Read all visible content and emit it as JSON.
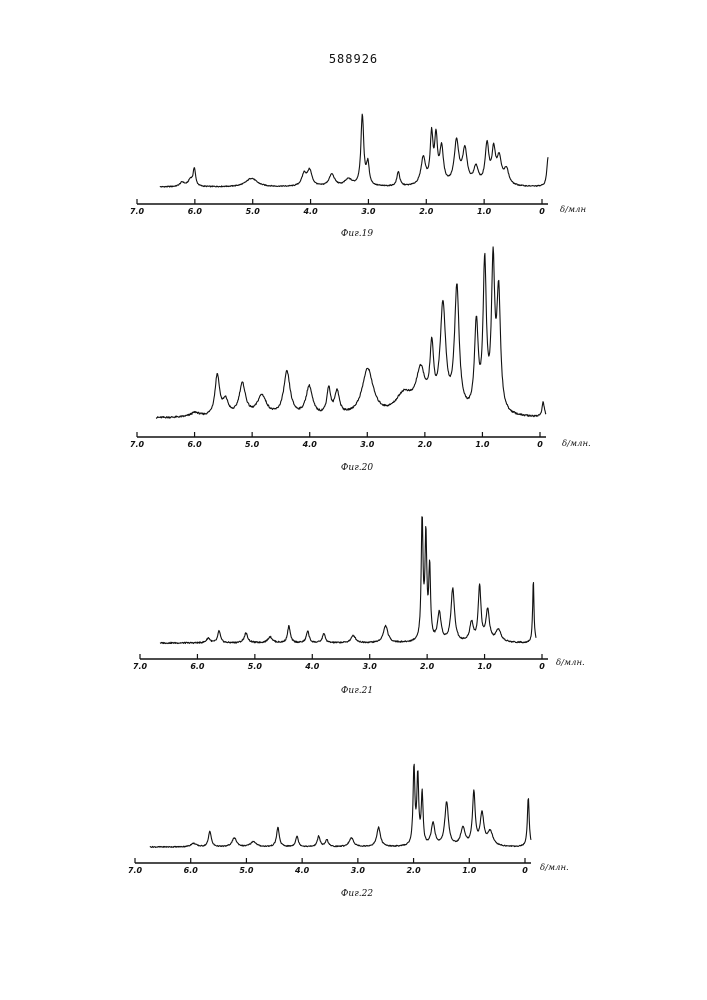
{
  "page": {
    "number": "588926"
  },
  "chart_data": [
    {
      "type": "line",
      "caption": "Фиг.19",
      "xlabel": "δ/млн",
      "xlim": [
        7.0,
        0
      ],
      "ticks": [
        7.0,
        6.0,
        5.0,
        4.0,
        3.0,
        2.0,
        1.0,
        0
      ],
      "tick_labels": [
        "7.0",
        "6.0",
        "5.0",
        "4.0",
        "3.0",
        "2.0",
        "1.0",
        "0"
      ],
      "peaks": [
        {
          "x": 6.6,
          "h": 0.05,
          "w": 0.05
        },
        {
          "x": 6.45,
          "h": 0.08,
          "w": 0.05
        },
        {
          "x": 6.38,
          "h": 0.2,
          "w": 0.025
        },
        {
          "x": 5.35,
          "h": 0.1,
          "w": 0.12
        },
        {
          "x": 4.4,
          "h": 0.14,
          "w": 0.05
        },
        {
          "x": 4.3,
          "h": 0.18,
          "w": 0.05
        },
        {
          "x": 3.9,
          "h": 0.14,
          "w": 0.06
        },
        {
          "x": 3.6,
          "h": 0.08,
          "w": 0.08
        },
        {
          "x": 3.35,
          "h": 0.82,
          "w": 0.03
        },
        {
          "x": 3.25,
          "h": 0.25,
          "w": 0.03
        },
        {
          "x": 2.7,
          "h": 0.17,
          "w": 0.03
        },
        {
          "x": 2.25,
          "h": 0.32,
          "w": 0.05
        },
        {
          "x": 2.1,
          "h": 0.56,
          "w": 0.03
        },
        {
          "x": 2.02,
          "h": 0.52,
          "w": 0.03
        },
        {
          "x": 1.92,
          "h": 0.42,
          "w": 0.04
        },
        {
          "x": 1.65,
          "h": 0.5,
          "w": 0.05
        },
        {
          "x": 1.5,
          "h": 0.4,
          "w": 0.05
        },
        {
          "x": 1.3,
          "h": 0.2,
          "w": 0.05
        },
        {
          "x": 1.1,
          "h": 0.46,
          "w": 0.04
        },
        {
          "x": 0.98,
          "h": 0.38,
          "w": 0.04
        },
        {
          "x": 0.88,
          "h": 0.3,
          "w": 0.05
        },
        {
          "x": 0.75,
          "h": 0.18,
          "w": 0.05
        },
        {
          "x": 0.0,
          "h": 0.34,
          "w": 0.025
        }
      ]
    },
    {
      "type": "line",
      "caption": "Фиг.20",
      "xlabel": "δ/млн.",
      "xlim": [
        7.0,
        0
      ],
      "ticks": [
        7.0,
        6.0,
        5.0,
        4.0,
        3.0,
        2.0,
        1.0,
        0
      ],
      "tick_labels": [
        "7.0",
        "6.0",
        "5.0",
        "4.0",
        "3.0",
        "2.0",
        "1.0",
        "0"
      ],
      "peaks": [
        {
          "x": 6.3,
          "h": 0.03,
          "w": 0.1
        },
        {
          "x": 5.9,
          "h": 0.28,
          "w": 0.05
        },
        {
          "x": 5.75,
          "h": 0.1,
          "w": 0.06
        },
        {
          "x": 5.45,
          "h": 0.22,
          "w": 0.07
        },
        {
          "x": 5.1,
          "h": 0.14,
          "w": 0.1
        },
        {
          "x": 4.65,
          "h": 0.3,
          "w": 0.07
        },
        {
          "x": 4.25,
          "h": 0.2,
          "w": 0.07
        },
        {
          "x": 3.9,
          "h": 0.18,
          "w": 0.04
        },
        {
          "x": 3.75,
          "h": 0.16,
          "w": 0.05
        },
        {
          "x": 3.2,
          "h": 0.32,
          "w": 0.12
        },
        {
          "x": 2.55,
          "h": 0.14,
          "w": 0.18
        },
        {
          "x": 2.25,
          "h": 0.28,
          "w": 0.1
        },
        {
          "x": 2.05,
          "h": 0.4,
          "w": 0.04
        },
        {
          "x": 1.85,
          "h": 0.72,
          "w": 0.06
        },
        {
          "x": 1.6,
          "h": 0.85,
          "w": 0.05
        },
        {
          "x": 1.25,
          "h": 0.6,
          "w": 0.04
        },
        {
          "x": 1.1,
          "h": 1.0,
          "w": 0.035
        },
        {
          "x": 0.95,
          "h": 0.98,
          "w": 0.035
        },
        {
          "x": 0.85,
          "h": 0.8,
          "w": 0.04
        },
        {
          "x": 0.05,
          "h": 0.1,
          "w": 0.025
        }
      ]
    },
    {
      "type": "line",
      "caption": "Фиг.21",
      "xlabel": "δ/млн.",
      "xlim": [
        7.0,
        0
      ],
      "ticks": [
        7.0,
        6.0,
        5.0,
        4.0,
        3.0,
        2.0,
        1.0,
        0
      ],
      "tick_labels": [
        "7.0",
        "6.0",
        "5.0",
        "4.0",
        "3.0",
        "2.0",
        "1.0",
        "0"
      ],
      "peaks": [
        {
          "x": 6.1,
          "h": 0.04,
          "w": 0.04
        },
        {
          "x": 5.9,
          "h": 0.1,
          "w": 0.03
        },
        {
          "x": 5.4,
          "h": 0.08,
          "w": 0.04
        },
        {
          "x": 4.95,
          "h": 0.05,
          "w": 0.05
        },
        {
          "x": 4.6,
          "h": 0.14,
          "w": 0.03
        },
        {
          "x": 4.25,
          "h": 0.1,
          "w": 0.03
        },
        {
          "x": 3.95,
          "h": 0.08,
          "w": 0.03
        },
        {
          "x": 3.4,
          "h": 0.06,
          "w": 0.05
        },
        {
          "x": 2.8,
          "h": 0.14,
          "w": 0.05
        },
        {
          "x": 2.12,
          "h": 1.0,
          "w": 0.02
        },
        {
          "x": 2.05,
          "h": 0.86,
          "w": 0.02
        },
        {
          "x": 1.98,
          "h": 0.6,
          "w": 0.02
        },
        {
          "x": 1.8,
          "h": 0.24,
          "w": 0.04
        },
        {
          "x": 1.55,
          "h": 0.44,
          "w": 0.04
        },
        {
          "x": 1.2,
          "h": 0.16,
          "w": 0.04
        },
        {
          "x": 1.05,
          "h": 0.46,
          "w": 0.03
        },
        {
          "x": 0.9,
          "h": 0.26,
          "w": 0.04
        },
        {
          "x": 0.7,
          "h": 0.1,
          "w": 0.06
        },
        {
          "x": 0.05,
          "h": 0.52,
          "w": 0.015
        }
      ]
    },
    {
      "type": "line",
      "caption": "Фиг.22",
      "xlabel": "δ/млн.",
      "xlim": [
        7.0,
        0
      ],
      "ticks": [
        7.0,
        6.0,
        5.0,
        4.0,
        3.0,
        2.0,
        1.0,
        0
      ],
      "tick_labels": [
        "7.0",
        "6.0",
        "5.0",
        "4.0",
        "3.0",
        "2.0",
        "1.0",
        "0"
      ],
      "peaks": [
        {
          "x": 6.2,
          "h": 0.04,
          "w": 0.06
        },
        {
          "x": 5.9,
          "h": 0.18,
          "w": 0.03
        },
        {
          "x": 5.45,
          "h": 0.1,
          "w": 0.05
        },
        {
          "x": 5.1,
          "h": 0.06,
          "w": 0.06
        },
        {
          "x": 4.65,
          "h": 0.22,
          "w": 0.03
        },
        {
          "x": 4.3,
          "h": 0.12,
          "w": 0.03
        },
        {
          "x": 3.9,
          "h": 0.12,
          "w": 0.03
        },
        {
          "x": 3.75,
          "h": 0.08,
          "w": 0.03
        },
        {
          "x": 3.3,
          "h": 0.1,
          "w": 0.05
        },
        {
          "x": 2.8,
          "h": 0.22,
          "w": 0.04
        },
        {
          "x": 2.15,
          "h": 0.88,
          "w": 0.02
        },
        {
          "x": 2.08,
          "h": 0.78,
          "w": 0.02
        },
        {
          "x": 2.0,
          "h": 0.58,
          "w": 0.02
        },
        {
          "x": 1.8,
          "h": 0.26,
          "w": 0.04
        },
        {
          "x": 1.55,
          "h": 0.5,
          "w": 0.04
        },
        {
          "x": 1.25,
          "h": 0.2,
          "w": 0.05
        },
        {
          "x": 1.05,
          "h": 0.6,
          "w": 0.03
        },
        {
          "x": 0.9,
          "h": 0.36,
          "w": 0.04
        },
        {
          "x": 0.75,
          "h": 0.16,
          "w": 0.06
        },
        {
          "x": 0.05,
          "h": 0.56,
          "w": 0.02
        }
      ]
    }
  ]
}
